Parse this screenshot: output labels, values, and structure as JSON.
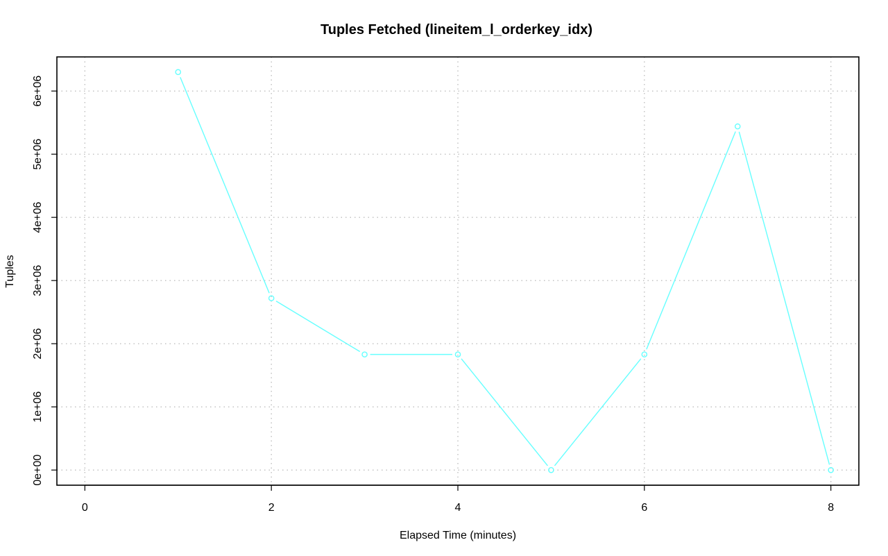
{
  "chart_data": {
    "type": "line",
    "title": "Tuples Fetched (lineitem_l_orderkey_idx)",
    "xlabel": "Elapsed Time (minutes)",
    "ylabel": "Tuples",
    "xlim": [
      -0.3,
      8.3
    ],
    "ylim": [
      -240000,
      6540000
    ],
    "x_ticks": [
      0,
      2,
      4,
      6,
      8
    ],
    "x_tick_labels": [
      "0",
      "2",
      "4",
      "6",
      "8"
    ],
    "y_ticks": [
      0,
      1000000,
      2000000,
      3000000,
      4000000,
      5000000,
      6000000
    ],
    "y_tick_labels": [
      "0e+00",
      "1e+06",
      "2e+06",
      "3e+06",
      "4e+06",
      "5e+06",
      "6e+06"
    ],
    "grid": true,
    "series": [
      {
        "x": [
          1,
          2,
          3,
          4,
          5,
          6,
          7,
          8
        ],
        "values": [
          6300000,
          2720000,
          1830000,
          1830000,
          0,
          1830000,
          5440000,
          0
        ],
        "color": "#66ffff"
      }
    ],
    "colors": {
      "axes": "#000000",
      "grid": "#bebebe",
      "series": "#66ffff"
    }
  }
}
